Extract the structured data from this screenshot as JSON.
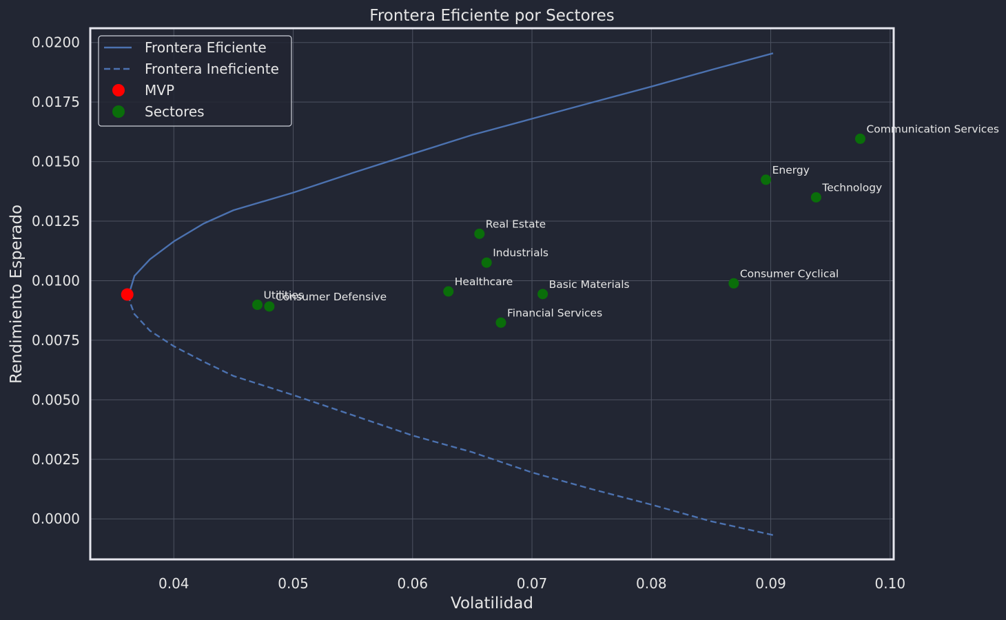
{
  "chart_data": {
    "type": "line",
    "title": "Frontera Eficiente por Sectores",
    "xlabel": "Volatilidad",
    "ylabel": "Rendimiento Esperado",
    "xlim": [
      0.033,
      0.1003
    ],
    "ylim": [
      -0.0017,
      0.0206
    ],
    "x_ticks": [
      "0.04",
      "0.05",
      "0.06",
      "0.07",
      "0.08",
      "0.09",
      "0.10"
    ],
    "y_ticks": [
      "0.0000",
      "0.0025",
      "0.0050",
      "0.0075",
      "0.0100",
      "0.0125",
      "0.0150",
      "0.0175",
      "0.0200"
    ],
    "grid": true,
    "legend_position": "upper left",
    "legend": [
      {
        "label": "Frontera Eficiente",
        "kind": "solid-line",
        "color": "#4c72b0"
      },
      {
        "label": "Frontera Ineficiente",
        "kind": "dashed-line",
        "color": "#4c72b0"
      },
      {
        "label": "MVP",
        "kind": "marker",
        "color": "#ff0000"
      },
      {
        "label": "Sectores",
        "kind": "marker",
        "color": "#0a6e0a"
      }
    ],
    "colors": {
      "background": "#222633",
      "grid": "#4d5261",
      "frame": "#e6e6ee",
      "text": "#e6e6e6",
      "frontier": "#4c72b0",
      "mvp": "#ff0000",
      "sectors": "#0a6e0a"
    },
    "series": [
      {
        "name": "Frontera Eficiente",
        "style": "solid",
        "points": [
          [
            0.0362,
            0.0094
          ],
          [
            0.0364,
            0.0097
          ],
          [
            0.0367,
            0.0102
          ],
          [
            0.038,
            0.0109
          ],
          [
            0.04,
            0.01165
          ],
          [
            0.0425,
            0.0124
          ],
          [
            0.045,
            0.01296
          ],
          [
            0.05,
            0.0137
          ],
          [
            0.055,
            0.01453
          ],
          [
            0.06,
            0.01533
          ],
          [
            0.065,
            0.01612
          ],
          [
            0.07,
            0.0168
          ],
          [
            0.075,
            0.01748
          ],
          [
            0.08,
            0.01815
          ],
          [
            0.085,
            0.01885
          ],
          [
            0.0902,
            0.01955
          ]
        ]
      },
      {
        "name": "Frontera Ineficiente",
        "style": "dashed",
        "points": [
          [
            0.0362,
            0.0094
          ],
          [
            0.0364,
            0.009
          ],
          [
            0.0367,
            0.0086
          ],
          [
            0.038,
            0.0079
          ],
          [
            0.04,
            0.00725
          ],
          [
            0.0425,
            0.0066
          ],
          [
            0.045,
            0.006
          ],
          [
            0.05,
            0.0052
          ],
          [
            0.055,
            0.00435
          ],
          [
            0.06,
            0.0035
          ],
          [
            0.065,
            0.0028
          ],
          [
            0.07,
            0.00195
          ],
          [
            0.075,
            0.00125
          ],
          [
            0.08,
            0.0006
          ],
          [
            0.085,
            -0.0001
          ],
          [
            0.0902,
            -0.00068
          ]
        ]
      },
      {
        "name": "MVP",
        "style": "marker",
        "points": [
          [
            0.0361,
            0.00942
          ]
        ]
      },
      {
        "name": "Sectores",
        "style": "marker",
        "points": [
          {
            "label": "Utilities",
            "x": 0.047,
            "y": 0.00899
          },
          {
            "label": "Consumer Defensive",
            "x": 0.048,
            "y": 0.00892
          },
          {
            "label": "Healthcare",
            "x": 0.063,
            "y": 0.00955
          },
          {
            "label": "Real Estate",
            "x": 0.0656,
            "y": 0.01197
          },
          {
            "label": "Industrials",
            "x": 0.0662,
            "y": 0.01076
          },
          {
            "label": "Financial Services",
            "x": 0.0674,
            "y": 0.00824
          },
          {
            "label": "Basic Materials",
            "x": 0.0709,
            "y": 0.00944
          },
          {
            "label": "Consumer Cyclical",
            "x": 0.0869,
            "y": 0.00989
          },
          {
            "label": "Energy",
            "x": 0.0896,
            "y": 0.01424
          },
          {
            "label": "Technology",
            "x": 0.0938,
            "y": 0.0135
          },
          {
            "label": "Communication Services",
            "x": 0.0975,
            "y": 0.01596
          }
        ]
      }
    ]
  }
}
